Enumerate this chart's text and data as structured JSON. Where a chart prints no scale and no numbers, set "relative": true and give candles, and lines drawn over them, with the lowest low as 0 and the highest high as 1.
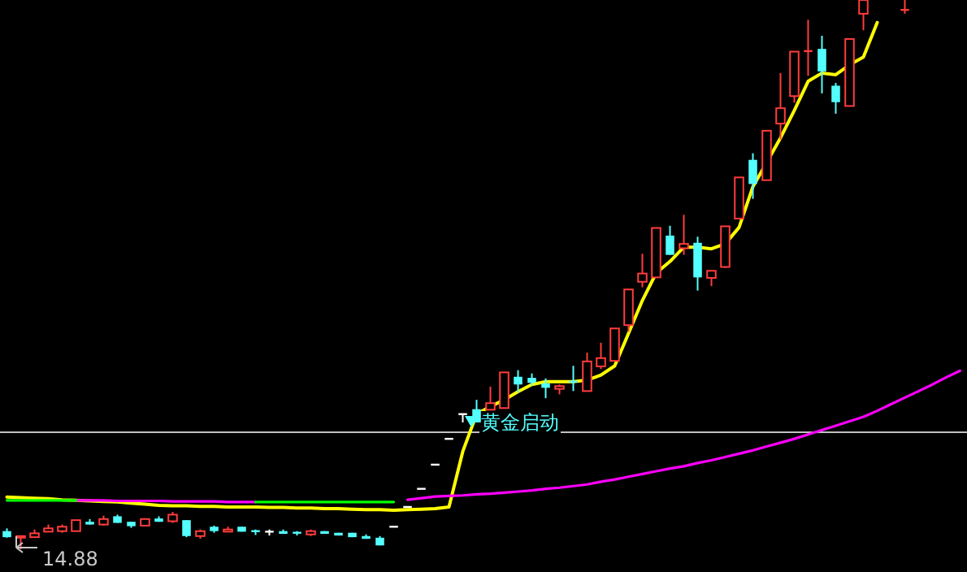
{
  "chart_data": {
    "type": "candlestick",
    "relative": true,
    "categories": [
      null,
      null,
      null,
      null,
      null,
      null,
      null,
      null,
      null,
      null,
      null,
      null,
      null,
      null,
      null,
      null,
      null,
      null,
      null,
      null,
      null,
      null,
      null,
      null,
      null,
      null,
      null,
      null,
      null,
      null,
      null,
      null,
      null,
      null,
      null,
      null,
      null,
      null,
      null,
      null,
      null,
      null,
      null,
      null,
      null,
      null,
      null,
      null,
      null,
      null,
      null,
      null,
      null,
      null,
      null,
      null,
      null,
      null,
      null,
      null,
      null,
      null,
      null,
      null,
      null,
      null,
      null,
      null,
      null,
      null
    ],
    "ohlc": [
      [
        0.033,
        0.038,
        0.021,
        0.022
      ],
      [
        0.021,
        0.024,
        0,
        0.024
      ],
      [
        0.022,
        0.036,
        0.022,
        0.029
      ],
      [
        0.032,
        0.045,
        0.032,
        0.038
      ],
      [
        0.033,
        0.045,
        0.03,
        0.041
      ],
      [
        0.033,
        0.053,
        0.033,
        0.053
      ],
      [
        0.05,
        0.055,
        0.045,
        0.045
      ],
      [
        0.045,
        0.061,
        0.043,
        0.055
      ],
      [
        0.06,
        0.063,
        0.048,
        0.048
      ],
      [
        0.05,
        0.05,
        0.039,
        0.042
      ],
      [
        0.043,
        0.055,
        0.043,
        0.055
      ],
      [
        0.056,
        0.06,
        0.05,
        0.05
      ],
      [
        0.051,
        0.068,
        0.048,
        0.063
      ],
      [
        0.053,
        0.053,
        0.022,
        0.024
      ],
      [
        0.024,
        0.036,
        0.019,
        0.033
      ],
      [
        0.041,
        0.043,
        0.03,
        0.033
      ],
      [
        0.032,
        0.041,
        0.032,
        0.036
      ],
      [
        0.041,
        0.041,
        0.032,
        0.032
      ],
      [
        0.033,
        0.036,
        0.026,
        0.031
      ],
      [
        0.032,
        0.036,
        0.025,
        0.032
      ],
      [
        0.033,
        0.036,
        0.028,
        0.028
      ],
      [
        0.03,
        0.033,
        0.025,
        0.028
      ],
      [
        0.027,
        0.036,
        0.024,
        0.033
      ],
      [
        0.033,
        0.033,
        0.028,
        0.028
      ],
      [
        0.03,
        0.03,
        0.025,
        0.025
      ],
      [
        0.03,
        0.03,
        0.022,
        0.022
      ],
      [
        0.024,
        0.027,
        0.019,
        0.019
      ],
      [
        0.021,
        0.024,
        0.007,
        0.007
      ],
      [
        0.041,
        0.041,
        0.041,
        0.041
      ],
      [
        0.077,
        0.077,
        0.077,
        0.077
      ],
      [
        0.11,
        0.11,
        0.11,
        0.11
      ],
      [
        0.154,
        0.154,
        0.154,
        0.154
      ],
      [
        0.201,
        0.201,
        0.201,
        0.201
      ],
      [
        0.246,
        0.246,
        0.231,
        0.246
      ],
      [
        0.255,
        0.272,
        0.231,
        0.231
      ],
      [
        0.254,
        0.296,
        0.254,
        0.266
      ],
      [
        0.257,
        0.322,
        0.257,
        0.322
      ],
      [
        0.314,
        0.326,
        0.285,
        0.3
      ],
      [
        0.312,
        0.32,
        0.298,
        0.303
      ],
      [
        0.302,
        0.311,
        0.275,
        0.294
      ],
      [
        0.292,
        0.3,
        0.282,
        0.297
      ],
      [
        0.305,
        0.334,
        0.288,
        0.303
      ],
      [
        0.288,
        0.358,
        0.288,
        0.342
      ],
      [
        0.333,
        0.376,
        0.328,
        0.348
      ],
      [
        0.343,
        0.402,
        0.343,
        0.402
      ],
      [
        0.408,
        0.473,
        0.396,
        0.473
      ],
      [
        0.487,
        0.538,
        0.477,
        0.502
      ],
      [
        0.495,
        0.586,
        0.494,
        0.585
      ],
      [
        0.571,
        0.589,
        0.536,
        0.536
      ],
      [
        0.548,
        0.609,
        0.536,
        0.556
      ],
      [
        0.558,
        0.569,
        0.471,
        0.495
      ],
      [
        0.494,
        0.507,
        0.479,
        0.507
      ],
      [
        0.514,
        0.588,
        0.512,
        0.588
      ],
      [
        0.602,
        0.677,
        0.602,
        0.677
      ],
      [
        0.709,
        0.721,
        0.638,
        0.665
      ],
      [
        0.672,
        0.762,
        0.672,
        0.762
      ],
      [
        0.775,
        0.867,
        0.746,
        0.803
      ],
      [
        0.825,
        0.906,
        0.813,
        0.906
      ],
      [
        0.905,
        0.964,
        0.862,
        0.907
      ],
      [
        0.911,
        0.935,
        0.83,
        0.87
      ],
      [
        0.844,
        0.849,
        0.793,
        0.814
      ],
      [
        0.807,
        0.929,
        0.807,
        0.929
      ],
      [
        0.975,
        1,
        0.945,
        1
      ],
      null,
      null,
      [
        0.981,
        1,
        0.975,
        0.982
      ],
      null,
      null,
      null,
      null
    ],
    "series": [
      {
        "type": "line",
        "color": "#ffff00",
        "values": [
          0.095,
          0.094,
          0.093,
          0.092,
          0.09,
          0.089,
          0.088,
          0.087,
          0.086,
          0.084,
          0.082,
          0.08,
          0.079,
          0.079,
          0.078,
          0.078,
          0.077,
          0.077,
          0.077,
          0.076,
          0.076,
          0.075,
          0.075,
          0.074,
          0.074,
          0.073,
          0.072,
          0.072,
          0.071,
          0.072,
          0.073,
          0.074,
          0.077,
          0.178,
          0.246,
          0.26,
          0.272,
          0.287,
          0.3,
          0.305,
          0.305,
          0.305,
          0.308,
          0.317,
          0.334,
          0.393,
          0.453,
          0.503,
          0.524,
          0.55,
          0.55,
          0.547,
          0.556,
          0.586,
          0.66,
          0.704,
          0.749,
          0.799,
          0.852,
          0.867,
          0.864,
          0.882,
          0.896,
          0.959,
          null,
          null,
          null,
          null,
          null,
          null
        ]
      },
      {
        "type": "line",
        "color": "#ff00ff",
        "values": [
          null,
          null,
          null,
          null,
          null,
          0.089,
          0.089,
          0.089,
          0.088,
          0.088,
          0.088,
          0.088,
          0.087,
          0.087,
          0.087,
          0.087,
          0.086,
          0.086,
          0.086,
          null,
          null,
          null,
          null,
          null,
          null,
          null,
          null,
          null,
          null,
          0.09,
          0.093,
          0.096,
          0.097,
          0.098,
          0.1,
          0.101,
          0.103,
          0.105,
          0.107,
          0.11,
          0.112,
          0.115,
          0.118,
          0.123,
          0.127,
          0.132,
          0.137,
          0.142,
          0.147,
          0.151,
          0.157,
          0.162,
          0.168,
          0.174,
          0.18,
          0.187,
          0.194,
          0.201,
          0.209,
          0.217,
          0.225,
          0.233,
          0.241,
          0.252,
          0.264,
          0.276,
          0.288,
          0.3,
          0.313,
          0.325
        ]
      },
      {
        "type": "line",
        "color": "#00ff00",
        "values": [
          0.089,
          0.089,
          0.089,
          0.089,
          0.089,
          0.089,
          null,
          null,
          null,
          null,
          null,
          null,
          null,
          null,
          null,
          null,
          null,
          null,
          0.086,
          0.086,
          0.086,
          0.086,
          0.086,
          0.086,
          0.086,
          0.086,
          0.086,
          0.086,
          0.086,
          null,
          null,
          null,
          null,
          null,
          null,
          null,
          null,
          null,
          null,
          null,
          null,
          null,
          null,
          null,
          null,
          null,
          null,
          null,
          null,
          null,
          null,
          null,
          null,
          null,
          null,
          null,
          null,
          null,
          null,
          null,
          null,
          null,
          null,
          null,
          null,
          null,
          null,
          null,
          null,
          null
        ]
      }
    ],
    "ref_lines": [
      {
        "axis": "y",
        "value": 0.213,
        "color": "#c0c0c0"
      }
    ],
    "annotations": [
      "14.88",
      "黄金启动"
    ]
  }
}
